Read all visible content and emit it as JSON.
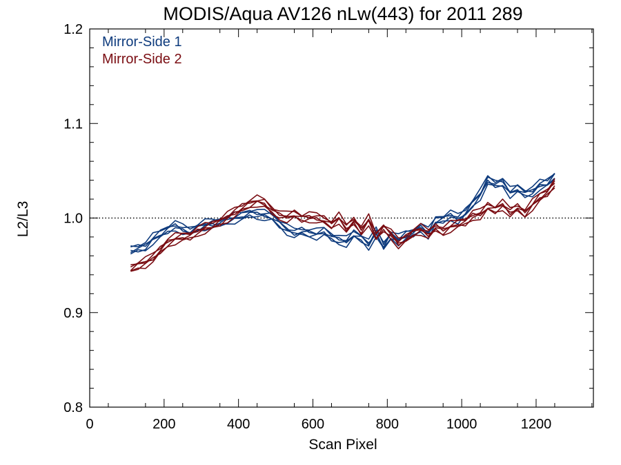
{
  "chart_data": {
    "type": "line",
    "title": "MODIS/Aqua AV126 nLw(443) for 2011 289",
    "xlabel": "Scan Pixel",
    "ylabel": "L2/L3",
    "xlim": [
      0,
      1354
    ],
    "ylim": [
      0.8,
      1.2
    ],
    "x_ticks": [
      0,
      200,
      400,
      600,
      800,
      1000,
      1200
    ],
    "x_tick_labels": [
      "0",
      "200",
      "400",
      "600",
      "800",
      "1000",
      "1200"
    ],
    "y_ticks": [
      0.8,
      0.9,
      1.0,
      1.1,
      1.2
    ],
    "y_tick_labels": [
      "0.8",
      "0.9",
      "1.0",
      "1.1",
      "1.2"
    ],
    "reference_line": 1.0,
    "grid": false,
    "legend": "top-left",
    "x": [
      110,
      130,
      150,
      170,
      190,
      210,
      230,
      250,
      270,
      290,
      310,
      330,
      350,
      370,
      390,
      410,
      430,
      450,
      470,
      490,
      510,
      530,
      550,
      570,
      590,
      610,
      630,
      650,
      670,
      690,
      710,
      730,
      750,
      770,
      790,
      810,
      830,
      850,
      870,
      890,
      910,
      930,
      950,
      970,
      990,
      1010,
      1030,
      1050,
      1070,
      1090,
      1110,
      1130,
      1150,
      1170,
      1190,
      1210,
      1230,
      1250
    ],
    "series": [
      {
        "name": "Mirror-Side 1",
        "color": "#0e3b7d",
        "values": [
          0.966,
          0.968,
          0.97,
          0.978,
          0.983,
          0.988,
          0.992,
          0.988,
          0.986,
          0.99,
          0.993,
          0.994,
          0.995,
          0.998,
          1.0,
          1.002,
          1.005,
          1.004,
          1.003,
          1.001,
          0.994,
          0.988,
          0.984,
          0.986,
          0.984,
          0.983,
          0.986,
          0.98,
          0.977,
          0.975,
          0.983,
          0.979,
          0.972,
          0.985,
          0.97,
          0.982,
          0.977,
          0.982,
          0.984,
          0.99,
          0.984,
          0.997,
          0.999,
          1.003,
          0.999,
          1.006,
          1.016,
          1.025,
          1.04,
          1.036,
          1.038,
          1.027,
          1.031,
          1.026,
          1.028,
          1.035,
          1.037,
          1.045
        ]
      },
      {
        "name": "Mirror-Side 2",
        "color": "#7a0d12",
        "values": [
          0.946,
          0.95,
          0.953,
          0.958,
          0.966,
          0.974,
          0.978,
          0.98,
          0.981,
          0.986,
          0.989,
          0.992,
          0.996,
          1.001,
          1.006,
          1.011,
          1.015,
          1.018,
          1.016,
          1.008,
          1.003,
          1.001,
          1.004,
          1.0,
          1.001,
          1.0,
          0.998,
          0.993,
          1.0,
          0.989,
          0.997,
          0.987,
          0.998,
          0.98,
          0.99,
          0.983,
          0.973,
          0.978,
          0.985,
          0.988,
          0.983,
          0.99,
          0.986,
          0.991,
          0.994,
          0.996,
          1.003,
          1.004,
          1.012,
          1.009,
          1.014,
          1.006,
          1.011,
          1.005,
          1.014,
          1.022,
          1.027,
          1.037
        ]
      }
    ]
  }
}
